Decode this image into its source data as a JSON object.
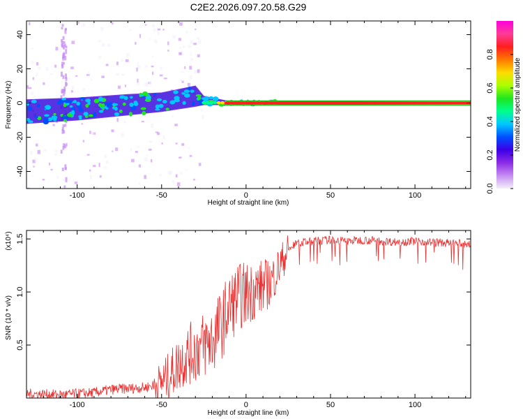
{
  "figure": {
    "title": "C2E2.2026.097.20.58.G29"
  },
  "chart_data": [
    {
      "type": "heatmap",
      "xlabel": "Height of straight line (km)",
      "ylabel": "Frequency (Hz)",
      "xlim": [
        -130,
        133
      ],
      "ylim": [
        -50,
        48
      ],
      "xticks": [
        -100,
        -50,
        0,
        50,
        100
      ],
      "yticks": [
        -40,
        -20,
        0,
        20,
        40
      ],
      "grid": false,
      "colorbar": {
        "label": "Normalized spectral amplitude",
        "range": [
          0,
          1
        ],
        "ticks": [
          "0.0",
          "0.2",
          "0.4",
          "0.6",
          "0.8"
        ],
        "colors": [
          "#f4f0fb",
          "#c68cf2",
          "#8c2be6",
          "#3c00e6",
          "#0050ff",
          "#00c8ff",
          "#00ff8c",
          "#1fe61f",
          "#aaff00",
          "#ffdc00",
          "#ff7800",
          "#ff1e1e",
          "#ff3c96",
          "#ff00dc"
        ]
      },
      "trace_color": "#1fc81f",
      "carrier_color": "#ff1e1e",
      "spread_envelope": [
        {
          "x": -130,
          "low": -12,
          "high": 2
        },
        {
          "x": -100,
          "low": -10,
          "high": 3
        },
        {
          "x": -70,
          "low": -7,
          "high": 5
        },
        {
          "x": -50,
          "low": -5,
          "high": 6
        },
        {
          "x": -30,
          "low": -2,
          "high": 10
        },
        {
          "x": -25,
          "low": -1,
          "high": 4
        },
        {
          "x": -10,
          "low": -1,
          "high": 1
        },
        {
          "x": 10,
          "low": -1,
          "high": 1
        },
        {
          "x": 133,
          "low": -0.6,
          "high": 0.6
        }
      ]
    },
    {
      "type": "line",
      "xlabel": "Height of straight line (km)",
      "ylabel": "SNR (10 * v/v)",
      "y_multiplier": "(x10⁴)",
      "xlim": [
        -130,
        133
      ],
      "ylim": [
        0,
        1.58
      ],
      "xticks": [
        -100,
        -50,
        0,
        50,
        100
      ],
      "yticks": [
        "0.5",
        "1.0",
        "1.5"
      ],
      "grid": false,
      "line_color": "#e83030",
      "series": [
        {
          "x": [
            -130,
            -110,
            -90,
            -80,
            -70,
            -60,
            -55,
            -50,
            -45,
            -40,
            -35,
            -30,
            -25,
            -20,
            -15,
            -10,
            -5,
            0,
            5,
            10,
            15,
            20,
            25,
            30,
            40,
            50,
            60,
            70,
            80,
            90,
            100,
            110,
            120,
            133
          ],
          "values": [
            0.04,
            0.03,
            0.05,
            0.08,
            0.09,
            0.1,
            0.12,
            0.15,
            0.22,
            0.32,
            0.4,
            0.45,
            0.5,
            0.55,
            0.68,
            0.85,
            0.95,
            0.98,
            1.02,
            1.05,
            1.1,
            1.25,
            1.4,
            1.46,
            1.48,
            1.49,
            1.48,
            1.49,
            1.48,
            1.47,
            1.48,
            1.47,
            1.46,
            1.45
          ]
        }
      ]
    }
  ]
}
